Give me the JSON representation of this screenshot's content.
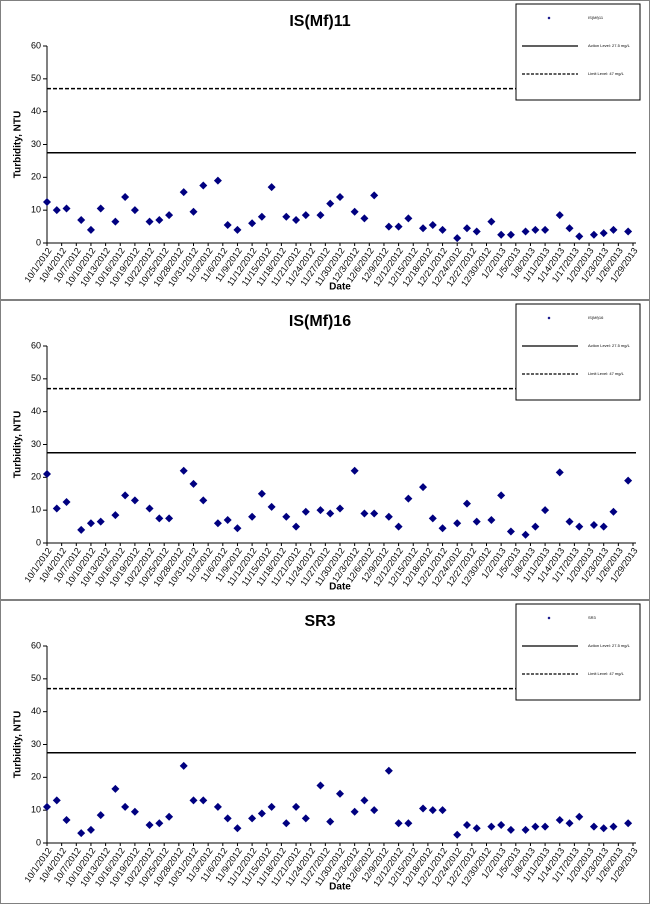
{
  "chart_data": [
    {
      "type": "scatter",
      "title": "IS(Mf)11",
      "x_label": "Date",
      "y_label": "Turbidity, NTU",
      "series": [
        {
          "name": "IS(Mf)11",
          "color": "#000080",
          "x": [
            "10/1/2012",
            "10/3/2012",
            "10/5/2012",
            "10/8/2012",
            "10/10/2012",
            "10/12/2012",
            "10/15/2012",
            "10/17/2012",
            "10/19/2012",
            "10/22/2012",
            "10/24/2012",
            "10/26/2012",
            "10/29/2012",
            "10/31/2012",
            "11/2/2012",
            "11/5/2012",
            "11/7/2012",
            "11/9/2012",
            "11/12/2012",
            "11/14/2012",
            "11/16/2012",
            "11/19/2012",
            "11/21/2012",
            "11/23/2012",
            "11/26/2012",
            "11/28/2012",
            "11/30/2012",
            "12/3/2012",
            "12/5/2012",
            "12/7/2012",
            "12/10/2012",
            "12/12/2012",
            "12/14/2012",
            "12/17/2012",
            "12/19/2012",
            "12/21/2012",
            "12/24/2012",
            "12/26/2012",
            "12/28/2012",
            "12/31/2012",
            "1/2/2013",
            "1/4/2013",
            "1/7/2013",
            "1/9/2013",
            "1/11/2013",
            "1/14/2013",
            "1/16/2013",
            "1/18/2013",
            "1/21/2013",
            "1/23/2013",
            "1/25/2013",
            "1/28/2013"
          ],
          "values": [
            12.5,
            10,
            10.5,
            7,
            4,
            10.5,
            6.5,
            14,
            10,
            6.5,
            7,
            8.5,
            15.5,
            9.5,
            17.5,
            19,
            5.5,
            4,
            6,
            8,
            17,
            8,
            7,
            8.5,
            8.5,
            12,
            14,
            9.5,
            7.5,
            14.5,
            5,
            5,
            7.5,
            4.5,
            5.5,
            4,
            1.5,
            4.5,
            3.5,
            6.5,
            2.5,
            2.5,
            3.5,
            4,
            4,
            8.5,
            4.5,
            2,
            2.5,
            3,
            4,
            3.5
          ]
        }
      ],
      "hlines": [
        {
          "label": "Action Level: 27.5 mg/L",
          "value": 27.5,
          "style": "solid"
        },
        {
          "label": "Limit Level: 47 mg/L",
          "value": 47,
          "style": "dashed"
        }
      ],
      "ylim": [
        0,
        60
      ],
      "yticks": [
        0,
        10,
        20,
        30,
        40,
        50,
        60
      ],
      "xlim": [
        "10/1/2012",
        "1/29/2013"
      ],
      "xticks": [
        "10/1/2012",
        "10/4/2012",
        "10/7/2012",
        "10/10/2012",
        "10/13/2012",
        "10/16/2012",
        "10/19/2012",
        "10/22/2012",
        "10/25/2012",
        "10/28/2012",
        "10/31/2012",
        "11/3/2012",
        "11/6/2012",
        "11/9/2012",
        "11/12/2012",
        "11/15/2012",
        "11/18/2012",
        "11/21/2012",
        "11/24/2012",
        "11/27/2012",
        "11/30/2012",
        "12/3/2012",
        "12/6/2012",
        "12/9/2012",
        "12/12/2012",
        "12/15/2012",
        "12/18/2012",
        "12/21/2012",
        "12/24/2012",
        "12/27/2012",
        "12/30/2012",
        "1/2/2013",
        "1/5/2013",
        "1/8/2013",
        "1/11/2013",
        "1/14/2013",
        "1/17/2013",
        "1/20/2013",
        "1/23/2013",
        "1/26/2013",
        "1/29/2013"
      ],
      "legend": "upper right"
    },
    {
      "type": "scatter",
      "title": "IS(Mf)16",
      "x_label": "Date",
      "y_label": "Turbidity, NTU",
      "series": [
        {
          "name": "IS(Mf)16",
          "color": "#000080",
          "x": [
            "10/1/2012",
            "10/3/2012",
            "10/5/2012",
            "10/8/2012",
            "10/10/2012",
            "10/12/2012",
            "10/15/2012",
            "10/17/2012",
            "10/19/2012",
            "10/22/2012",
            "10/24/2012",
            "10/26/2012",
            "10/29/2012",
            "10/31/2012",
            "11/2/2012",
            "11/5/2012",
            "11/7/2012",
            "11/9/2012",
            "11/12/2012",
            "11/14/2012",
            "11/16/2012",
            "11/19/2012",
            "11/21/2012",
            "11/23/2012",
            "11/26/2012",
            "11/28/2012",
            "11/30/2012",
            "12/3/2012",
            "12/5/2012",
            "12/7/2012",
            "12/10/2012",
            "12/12/2012",
            "12/14/2012",
            "12/17/2012",
            "12/19/2012",
            "12/21/2012",
            "12/24/2012",
            "12/26/2012",
            "12/28/2012",
            "12/31/2012",
            "1/2/2013",
            "1/4/2013",
            "1/7/2013",
            "1/9/2013",
            "1/11/2013",
            "1/14/2013",
            "1/16/2013",
            "1/18/2013",
            "1/21/2013",
            "1/23/2013",
            "1/25/2013",
            "1/28/2013"
          ],
          "values": [
            21,
            10.5,
            12.5,
            4,
            6,
            6.5,
            8.5,
            14.5,
            13,
            10.5,
            7.5,
            7.5,
            22,
            18,
            13,
            6,
            7,
            4.5,
            8,
            15,
            11,
            8,
            5,
            9.5,
            10,
            9,
            10.5,
            22,
            9,
            9,
            8,
            5,
            13.5,
            17,
            7.5,
            4.5,
            6,
            12,
            6.5,
            7,
            14.5,
            3.5,
            2.5,
            5,
            10,
            21.5,
            6.5,
            5,
            5.5,
            5,
            9.5,
            19
          ]
        }
      ],
      "hlines": [
        {
          "label": "Action Level: 27.5 mg/L",
          "value": 27.5,
          "style": "solid"
        },
        {
          "label": "Limit Level: 47 mg/L",
          "value": 47,
          "style": "dashed"
        }
      ],
      "ylim": [
        0,
        60
      ],
      "yticks": [
        0,
        10,
        20,
        30,
        40,
        50,
        60
      ],
      "xlim": [
        "10/1/2012",
        "1/29/2013"
      ],
      "xticks": [
        "10/1/2012",
        "10/4/2012",
        "10/7/2012",
        "10/10/2012",
        "10/13/2012",
        "10/16/2012",
        "10/19/2012",
        "10/22/2012",
        "10/25/2012",
        "10/28/2012",
        "10/31/2012",
        "11/3/2012",
        "11/6/2012",
        "11/9/2012",
        "11/12/2012",
        "11/15/2012",
        "11/18/2012",
        "11/21/2012",
        "11/24/2012",
        "11/27/2012",
        "11/30/2012",
        "12/3/2012",
        "12/6/2012",
        "12/9/2012",
        "12/12/2012",
        "12/15/2012",
        "12/18/2012",
        "12/21/2012",
        "12/24/2012",
        "12/27/2012",
        "12/30/2012",
        "1/2/2013",
        "1/5/2013",
        "1/8/2013",
        "1/11/2013",
        "1/14/2013",
        "1/17/2013",
        "1/20/2013",
        "1/23/2013",
        "1/26/2013",
        "1/29/2013"
      ],
      "legend": "upper right"
    },
    {
      "type": "scatter",
      "title": "SR3",
      "x_label": "Date",
      "y_label": "Turbidity, NTU",
      "series": [
        {
          "name": "SR3",
          "color": "#000080",
          "x": [
            "10/1/2012",
            "10/3/2012",
            "10/5/2012",
            "10/8/2012",
            "10/10/2012",
            "10/12/2012",
            "10/15/2012",
            "10/17/2012",
            "10/19/2012",
            "10/22/2012",
            "10/24/2012",
            "10/26/2012",
            "10/29/2012",
            "10/31/2012",
            "11/2/2012",
            "11/5/2012",
            "11/7/2012",
            "11/9/2012",
            "11/12/2012",
            "11/14/2012",
            "11/16/2012",
            "11/19/2012",
            "11/21/2012",
            "11/23/2012",
            "11/26/2012",
            "11/28/2012",
            "11/30/2012",
            "12/3/2012",
            "12/5/2012",
            "12/7/2012",
            "12/10/2012",
            "12/12/2012",
            "12/14/2012",
            "12/17/2012",
            "12/19/2012",
            "12/21/2012",
            "12/24/2012",
            "12/26/2012",
            "12/28/2012",
            "12/31/2012",
            "1/2/2013",
            "1/4/2013",
            "1/7/2013",
            "1/9/2013",
            "1/11/2013",
            "1/14/2013",
            "1/16/2013",
            "1/18/2013",
            "1/21/2013",
            "1/23/2013",
            "1/25/2013",
            "1/28/2013"
          ],
          "values": [
            11,
            13,
            7,
            3,
            4,
            8.5,
            16.5,
            11,
            9.5,
            5.5,
            6,
            8,
            23.5,
            13,
            13,
            11,
            7.5,
            4.5,
            7.5,
            9,
            11,
            6,
            11,
            7.5,
            17.5,
            6.5,
            15,
            9.5,
            13,
            10,
            22,
            6,
            6,
            10.5,
            10,
            10,
            2.5,
            5.5,
            4.5,
            5,
            5.5,
            4,
            4,
            5,
            5,
            7,
            6,
            8,
            5,
            4.5,
            5,
            6
          ]
        }
      ],
      "hlines": [
        {
          "label": "Action Level: 27.5 mg/L",
          "value": 27.5,
          "style": "solid"
        },
        {
          "label": "Limit Level: 47 mg/L",
          "value": 47,
          "style": "dashed"
        }
      ],
      "ylim": [
        0,
        60
      ],
      "yticks": [
        0,
        10,
        20,
        30,
        40,
        50,
        60
      ],
      "xlim": [
        "10/1/2012",
        "1/29/2013"
      ],
      "xticks": [
        "10/1/2012",
        "10/4/2012",
        "10/7/2012",
        "10/10/2012",
        "10/13/2012",
        "10/16/2012",
        "10/19/2012",
        "10/22/2012",
        "10/25/2012",
        "10/28/2012",
        "10/31/2012",
        "11/3/2012",
        "11/6/2012",
        "11/9/2012",
        "11/12/2012",
        "11/15/2012",
        "11/18/2012",
        "11/21/2012",
        "11/24/2012",
        "11/27/2012",
        "11/30/2012",
        "12/3/2012",
        "12/6/2012",
        "12/9/2012",
        "12/12/2012",
        "12/15/2012",
        "12/18/2012",
        "12/21/2012",
        "12/24/2012",
        "12/27/2012",
        "12/30/2012",
        "1/2/2013",
        "1/5/2013",
        "1/8/2013",
        "1/11/2013",
        "1/14/2013",
        "1/17/2013",
        "1/20/2013",
        "1/23/2013",
        "1/26/2013",
        "1/29/2013"
      ],
      "legend": "upper right"
    }
  ]
}
